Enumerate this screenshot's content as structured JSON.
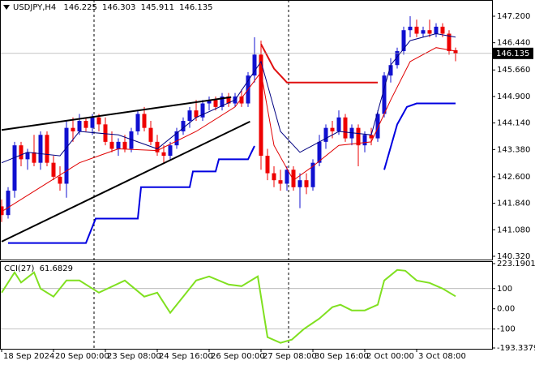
{
  "chart_data": [
    {
      "type": "candlestick",
      "title": "USDJPY,H4",
      "categories": [
        "18 Sep 2024",
        null,
        null,
        null,
        null,
        null,
        null,
        null,
        "20 Sep 00:00",
        null,
        null,
        null,
        null,
        null,
        null,
        null,
        "23 Sep 08:00",
        null,
        null,
        null,
        null,
        null,
        null,
        null,
        "24 Sep 16:00",
        null,
        null,
        null,
        null,
        null,
        null,
        null,
        "26 Sep 00:00",
        null,
        null,
        null,
        null,
        null,
        null,
        null,
        "27 Sep 08:00",
        null,
        null,
        null,
        null,
        null,
        null,
        null,
        "30 Sep 16:00",
        null,
        null,
        null,
        null,
        null,
        null,
        null,
        "2 Oct 00:00",
        null,
        null,
        null,
        null,
        null,
        null,
        null,
        "3 Oct 08:00",
        null,
        null,
        null,
        null,
        null,
        null
      ],
      "open": [
        141.75,
        141.5,
        142.2,
        143.5,
        143.1,
        143.3,
        143.0,
        143.8,
        143.0,
        142.6,
        142.4,
        144.0,
        143.9,
        144.2,
        144.0,
        144.3,
        144.1,
        143.6,
        143.4,
        143.6,
        143.4,
        143.9,
        144.4,
        144.0,
        143.6,
        143.3,
        143.2,
        143.5,
        143.9,
        144.2,
        144.5,
        144.3,
        144.7,
        144.8,
        144.6,
        144.9,
        144.7,
        144.9,
        144.7,
        145.5,
        146.1,
        143.2,
        142.7,
        142.5,
        142.4,
        142.8,
        142.3,
        142.5,
        142.3,
        143.0,
        143.6,
        144.0,
        143.9,
        144.3,
        143.7,
        144.0,
        143.5,
        143.8,
        143.7,
        144.4,
        145.5,
        145.8,
        146.2,
        146.8,
        146.9,
        146.7,
        146.8,
        146.7,
        146.9,
        146.7,
        146.225
      ],
      "high": [
        141.95,
        142.3,
        143.6,
        143.6,
        143.4,
        143.8,
        143.9,
        143.9,
        143.2,
        142.9,
        144.2,
        144.3,
        144.4,
        144.3,
        144.4,
        144.4,
        144.3,
        143.9,
        143.7,
        143.8,
        144.0,
        144.5,
        144.6,
        144.2,
        143.8,
        143.5,
        143.6,
        144.0,
        144.3,
        144.6,
        144.8,
        144.8,
        144.9,
        144.9,
        145.0,
        145.0,
        145.0,
        145.1,
        145.6,
        146.6,
        146.5,
        143.4,
        142.9,
        142.8,
        142.9,
        142.9,
        142.7,
        142.7,
        143.1,
        143.8,
        144.1,
        144.2,
        144.5,
        144.4,
        144.1,
        144.1,
        143.9,
        144.0,
        144.5,
        145.6,
        146.0,
        146.3,
        146.9,
        147.2,
        147.1,
        146.9,
        147.1,
        147.0,
        147.0,
        146.8,
        146.303
      ],
      "low": [
        141.3,
        141.4,
        142.0,
        142.9,
        142.8,
        142.9,
        142.8,
        142.9,
        142.5,
        142.2,
        142.0,
        143.6,
        143.8,
        143.9,
        143.8,
        143.9,
        143.5,
        143.3,
        143.2,
        143.3,
        143.3,
        143.8,
        143.9,
        143.5,
        143.2,
        143.0,
        143.1,
        143.4,
        143.8,
        144.0,
        144.2,
        144.2,
        144.5,
        144.5,
        144.5,
        144.6,
        144.6,
        144.6,
        144.6,
        145.3,
        142.8,
        142.5,
        142.3,
        142.2,
        142.2,
        142.2,
        141.7,
        142.1,
        142.2,
        142.9,
        143.4,
        143.7,
        143.8,
        143.6,
        143.5,
        142.9,
        143.3,
        143.5,
        143.6,
        144.3,
        145.3,
        145.7,
        146.1,
        146.6,
        146.6,
        146.6,
        146.6,
        146.6,
        146.6,
        146.1,
        145.911
      ],
      "close": [
        141.5,
        142.2,
        143.5,
        143.1,
        143.3,
        143.0,
        143.8,
        143.0,
        142.6,
        142.4,
        144.0,
        143.9,
        144.2,
        144.0,
        144.3,
        144.1,
        143.6,
        143.4,
        143.6,
        143.4,
        143.9,
        144.4,
        144.0,
        143.6,
        143.3,
        143.2,
        143.5,
        143.9,
        144.2,
        144.5,
        144.3,
        144.7,
        144.8,
        144.6,
        144.9,
        144.7,
        144.9,
        144.7,
        145.5,
        146.1,
        143.2,
        142.7,
        142.5,
        142.4,
        142.8,
        142.3,
        142.5,
        142.3,
        143.0,
        143.6,
        144.0,
        143.9,
        144.3,
        143.7,
        144.0,
        143.5,
        143.8,
        143.7,
        144.4,
        145.5,
        145.8,
        146.2,
        146.8,
        146.9,
        146.7,
        146.8,
        146.7,
        146.9,
        146.7,
        146.2,
        146.135
      ],
      "bull_color": "#1010d0",
      "bear_color": "#ee0000",
      "ylim": [
        140.226,
        147.665
      ],
      "yticks": [
        {
          "value": 147.2,
          "label": "147.200"
        },
        {
          "value": 146.44,
          "label": "146.440"
        },
        {
          "value": 145.66,
          "label": "145.660"
        },
        {
          "value": 144.9,
          "label": "144.900"
        },
        {
          "value": 144.14,
          "label": "144.140"
        },
        {
          "value": 143.38,
          "label": "143.380"
        },
        {
          "value": 142.6,
          "label": "142.600"
        },
        {
          "value": 141.84,
          "label": "141.840"
        },
        {
          "value": 141.08,
          "label": "141.080"
        },
        {
          "value": 140.32,
          "label": "140.320"
        }
      ],
      "grid": false,
      "overlays": [
        {
          "color": "#000080",
          "width": 1,
          "x": [
            0,
            4,
            9,
            12,
            18,
            24,
            30,
            36,
            40,
            43,
            46,
            52,
            57,
            60,
            63,
            67,
            70
          ],
          "values": [
            143.0,
            143.3,
            143.2,
            143.9,
            143.8,
            143.4,
            144.3,
            144.8,
            145.9,
            143.9,
            143.3,
            143.9,
            143.8,
            145.8,
            146.5,
            146.7,
            146.6
          ]
        },
        {
          "color": "#e00000",
          "width": 1,
          "x": [
            0,
            6,
            12,
            18,
            24,
            30,
            36,
            40,
            42,
            45,
            48,
            52,
            57,
            60,
            63,
            67,
            70
          ],
          "values": [
            141.6,
            142.3,
            143.0,
            143.4,
            143.35,
            143.9,
            144.6,
            145.6,
            143.5,
            142.5,
            142.9,
            143.5,
            143.6,
            144.8,
            145.9,
            146.3,
            146.2
          ]
        },
        {
          "color": "#0000e0",
          "width": 2,
          "x": [
            1,
            13,
            14.5,
            21,
            21.5,
            29,
            29.5,
            33,
            33.5,
            38,
            39,
            39.5,
            59,
            61,
            62.5,
            64,
            70
          ],
          "values": [
            140.7,
            140.7,
            141.4,
            141.4,
            142.3,
            142.3,
            142.75,
            142.75,
            143.1,
            143.1,
            143.48,
            null,
            142.8,
            144.1,
            144.6,
            144.7,
            144.7
          ]
        },
        {
          "color": "#e01010",
          "width": 2,
          "x": [
            40,
            42,
            44,
            58
          ],
          "values": [
            146.4,
            145.7,
            145.3,
            145.3
          ]
        },
        {
          "color": "#000000",
          "width": 2,
          "x": [
            0,
            35.4
          ],
          "values": [
            143.94,
            144.88
          ]
        },
        {
          "color": "#000000",
          "width": 2,
          "x": [
            0,
            38.3
          ],
          "values": [
            140.74,
            144.18
          ]
        }
      ]
    },
    {
      "type": "line",
      "title": "CCI(27)",
      "color": "#80e020",
      "x": [
        0,
        2,
        3,
        5,
        6,
        8,
        10,
        12,
        15,
        19,
        22,
        24,
        26,
        28,
        30,
        32,
        35,
        37,
        39.5,
        41,
        43,
        44.75,
        46.6,
        49,
        51,
        52.25,
        54,
        56,
        58,
        59,
        61,
        62.25,
        64,
        66,
        68,
        70
      ],
      "values": [
        80,
        180,
        130,
        180,
        100,
        60,
        140,
        140,
        80,
        140,
        60,
        80,
        -20,
        60,
        140,
        160,
        120,
        112,
        160,
        -140,
        -168,
        -152,
        -100,
        -48,
        8,
        20,
        -8,
        -8,
        20,
        140,
        192,
        188,
        140,
        128,
        100,
        61.6829
      ],
      "ylim": [
        -193.3379,
        223.1901
      ],
      "yticks": [
        223.1901,
        100,
        {
          "value": 0,
          "label": "0.00"
        },
        -100,
        -193.3379
      ],
      "levels": [
        100,
        -100
      ]
    }
  ]
}
